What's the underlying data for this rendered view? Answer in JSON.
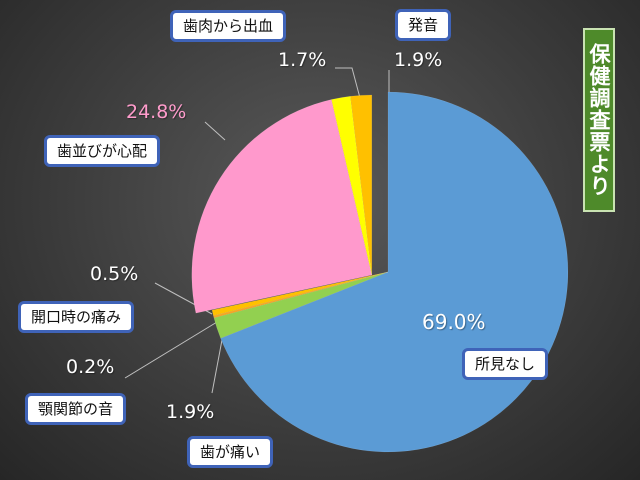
{
  "side_title": "保健調査票より",
  "chart_data": {
    "type": "pie",
    "title": "",
    "slices": [
      {
        "label": "所見なし",
        "value": 69.0,
        "value_label": "69.0%",
        "color": "#5b9bd5"
      },
      {
        "label": "歯が痛い",
        "value": 1.9,
        "value_label": "1.9%",
        "color": "#92d050"
      },
      {
        "label": "顎関節の音",
        "value": 0.2,
        "value_label": "0.2%",
        "color": "#f5a623"
      },
      {
        "label": "開口時の痛み",
        "value": 0.5,
        "value_label": "0.5%",
        "color": "#ffc000"
      },
      {
        "label": "歯並びが心配",
        "value": 24.8,
        "value_label": "24.8%",
        "color": "#ff99cc",
        "label_color": "#ff9ccc",
        "exploded": true
      },
      {
        "label": "歯肉から出血",
        "value": 1.7,
        "value_label": "1.7%",
        "color": "#ffff00",
        "exploded": true
      },
      {
        "label": "発音",
        "value": 1.9,
        "value_label": "1.9%",
        "color": "#ffc000",
        "exploded": true
      }
    ]
  }
}
